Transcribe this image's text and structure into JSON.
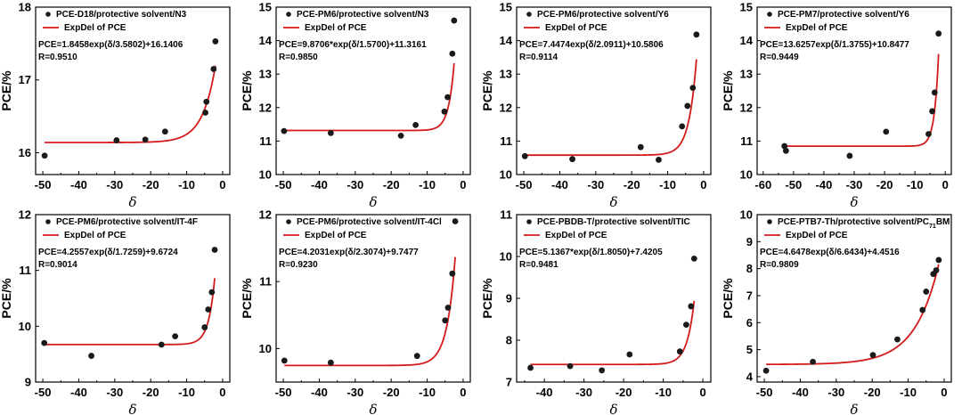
{
  "chart_data": [
    {
      "type": "scatter",
      "xlabel": "δ",
      "ylabel": "PCE/%",
      "xlim": [
        -52,
        2
      ],
      "ylim": [
        15.7,
        18.0
      ],
      "xticks": [
        -50,
        -40,
        -30,
        -20,
        -10,
        0
      ],
      "yticks": [
        16,
        17,
        18
      ],
      "series": [
        {
          "name": "PCE-D18/protective solvent/N3",
          "type": "scatter",
          "x": [
            -49.5,
            -29.5,
            -21.5,
            -16.0,
            -4.8,
            -4.5,
            -2.5,
            -2.0
          ],
          "y": [
            15.96,
            16.17,
            16.18,
            16.29,
            16.55,
            16.7,
            17.15,
            17.53
          ]
        },
        {
          "name": "ExpDel of PCE",
          "type": "line",
          "model": {
            "a": 1.8458,
            "t": 3.5802,
            "c": 16.1406
          }
        }
      ],
      "annotations": [
        "PCE=1.8458exp(δ/3.5802)+16.1406",
        "R=0.9510"
      ]
    },
    {
      "type": "scatter",
      "xlabel": "δ",
      "ylabel": "PCE/%",
      "xlim": [
        -52,
        2
      ],
      "ylim": [
        10.0,
        15.0
      ],
      "xticks": [
        -50,
        -40,
        -30,
        -20,
        -10,
        0
      ],
      "yticks": [
        10,
        11,
        12,
        13,
        14,
        15
      ],
      "series": [
        {
          "name": "PCE-PM6/protective solvent/N3",
          "type": "scatter",
          "x": [
            -49.8,
            -36.8,
            -17.3,
            -13.2,
            -5.2,
            -4.3,
            -3.0,
            -2.5
          ],
          "y": [
            11.3,
            11.24,
            11.16,
            11.48,
            11.88,
            12.31,
            13.61,
            14.6
          ]
        },
        {
          "name": "ExpDel of PCE",
          "type": "line",
          "model": {
            "a": 9.8706,
            "t": 1.57,
            "c": 11.3161
          }
        }
      ],
      "annotations": [
        "PCE=9.8706*exp(δ/1.5700)+11.3161",
        "R=0.9850"
      ]
    },
    {
      "type": "scatter",
      "xlabel": "δ",
      "ylabel": "PCE/%",
      "xlim": [
        -52,
        2
      ],
      "ylim": [
        10.0,
        15.0
      ],
      "xticks": [
        -50,
        -40,
        -30,
        -20,
        -10,
        0
      ],
      "yticks": [
        10,
        11,
        12,
        13,
        14,
        15
      ],
      "series": [
        {
          "name": "PCE-PM6/protective solvent/Y6",
          "type": "scatter",
          "x": [
            -49.7,
            -36.5,
            -17.5,
            -12.5,
            -6.0,
            -4.5,
            -3.0,
            -2.0
          ],
          "y": [
            10.55,
            10.46,
            10.82,
            10.44,
            11.44,
            12.05,
            12.59,
            14.18
          ]
        },
        {
          "name": "ExpDel of PCE",
          "type": "line",
          "model": {
            "a": 7.4474,
            "t": 2.0911,
            "c": 10.5806
          }
        }
      ],
      "annotations": [
        "PCE=7.4474exp(δ/2.0911)+10.5806",
        "R=0.9114"
      ]
    },
    {
      "type": "scatter",
      "xlabel": "δ",
      "ylabel": "PCE/%",
      "xlim": [
        -62,
        2
      ],
      "ylim": [
        10.0,
        15.0
      ],
      "xticks": [
        -60,
        -50,
        -40,
        -30,
        -20,
        -10,
        0
      ],
      "yticks": [
        10,
        11,
        12,
        13,
        14,
        15
      ],
      "series": [
        {
          "name": "PCE-PM7/protective solvent/Y6",
          "type": "scatter",
          "x": [
            -53.0,
            -52.5,
            -31.5,
            -19.5,
            -5.5,
            -4.3,
            -3.5,
            -2.2
          ],
          "y": [
            10.85,
            10.71,
            10.56,
            11.28,
            11.21,
            11.89,
            12.45,
            14.21
          ]
        },
        {
          "name": "ExpDel of PCE",
          "type": "line",
          "model": {
            "a": 13.6257,
            "t": 1.3755,
            "c": 10.8477
          }
        }
      ],
      "annotations": [
        "PCE=13.6257exp(δ/1.3755)+10.8477",
        "R=0.9449"
      ]
    },
    {
      "type": "scatter",
      "xlabel": "δ",
      "ylabel": "PCE/%",
      "xlim": [
        -52,
        2
      ],
      "ylim": [
        9.0,
        12.0
      ],
      "xticks": [
        -50,
        -40,
        -30,
        -20,
        -10,
        0
      ],
      "yticks": [
        9,
        10,
        11,
        12
      ],
      "series": [
        {
          "name": "PCE-PM6/protective solvent/IT-4F",
          "type": "scatter",
          "x": [
            -49.6,
            -36.5,
            -17.0,
            -13.2,
            -5.0,
            -4.0,
            -3.0,
            -2.2
          ],
          "y": [
            9.7,
            9.47,
            9.67,
            9.82,
            9.98,
            10.3,
            10.61,
            11.37
          ]
        },
        {
          "name": "ExpDel of PCE",
          "type": "line",
          "model": {
            "a": 4.2557,
            "t": 1.7259,
            "c": 9.6724
          }
        }
      ],
      "annotations": [
        "PCE=4.2557exp(δ/1.7259)+9.6724",
        "R=0.9014"
      ]
    },
    {
      "type": "scatter",
      "xlabel": "δ",
      "ylabel": "PCE/%",
      "xlim": [
        -52,
        2
      ],
      "ylim": [
        9.5,
        12.0
      ],
      "xticks": [
        -50,
        -40,
        -30,
        -20,
        -10,
        0
      ],
      "yticks": [
        10,
        11,
        12
      ],
      "series": [
        {
          "name": "PCE-PM6/protective solvent/IT-4Cl",
          "type": "scatter",
          "x": [
            -49.7,
            -36.8,
            -12.8,
            -5.0,
            -4.2,
            -3.0,
            -2.2
          ],
          "y": [
            9.82,
            9.79,
            9.89,
            10.42,
            10.61,
            11.12,
            11.9
          ]
        },
        {
          "name": "ExpDel of PCE",
          "type": "line",
          "model": {
            "a": 4.2031,
            "t": 2.3074,
            "c": 9.7477
          }
        }
      ],
      "annotations": [
        "PCE=4.2031exp(δ/2.3074)+9.7477",
        "R=0.9230"
      ]
    },
    {
      "type": "scatter",
      "xlabel": "δ",
      "ylabel": "PCE/%",
      "xlim": [
        -47,
        2
      ],
      "ylim": [
        7.0,
        11.0
      ],
      "xticks": [
        -50,
        -40,
        -30,
        -20,
        -10,
        0
      ],
      "yticks": [
        7,
        8,
        9,
        10,
        11
      ],
      "series": [
        {
          "name": "PCE-PBDB-T/protective solvent/ITIC",
          "type": "scatter",
          "x": [
            -43.5,
            -33.5,
            -25.5,
            -18.5,
            -5.8,
            -4.2,
            -3.0,
            -2.2
          ],
          "y": [
            7.34,
            7.38,
            7.28,
            7.66,
            7.73,
            8.37,
            8.81,
            9.95
          ]
        },
        {
          "name": "ExpDel of PCE",
          "type": "line",
          "model": {
            "a": 5.1367,
            "t": 1.805,
            "c": 7.4205
          }
        }
      ],
      "annotations": [
        "PCE=5.1367*exp(δ/1.8050)+7.4205",
        "R=0.9481"
      ]
    },
    {
      "type": "scatter",
      "xlabel": "δ",
      "ylabel": "PCE/%",
      "xlim": [
        -52,
        2
      ],
      "ylim": [
        3.8,
        10.0
      ],
      "xticks": [
        -50,
        -40,
        -30,
        -20,
        -10,
        0
      ],
      "yticks": [
        4,
        5,
        6,
        7,
        8,
        9,
        10
      ],
      "series": [
        {
          "name": "PCE-PTB7-Th/protective solvent/PC71BM",
          "type": "scatter",
          "x": [
            -49.5,
            -36.5,
            -19.8,
            -13.0,
            -6.0,
            -5.0,
            -3.0,
            -2.2,
            -1.5
          ],
          "y": [
            4.22,
            4.55,
            4.8,
            5.38,
            6.47,
            7.15,
            7.8,
            7.94,
            8.32
          ]
        },
        {
          "name": "ExpDel of PCE",
          "type": "line",
          "model": {
            "a": 4.6478,
            "t": 6.6434,
            "c": 4.4516
          }
        }
      ],
      "annotations": [
        "PCE=4.6478exp(δ/6.6434)+4.4516",
        "R=0.9809"
      ]
    }
  ],
  "colors": {
    "fit_line": "#d41a1a",
    "marker": "#1a1a1a",
    "axis": "#000000"
  }
}
